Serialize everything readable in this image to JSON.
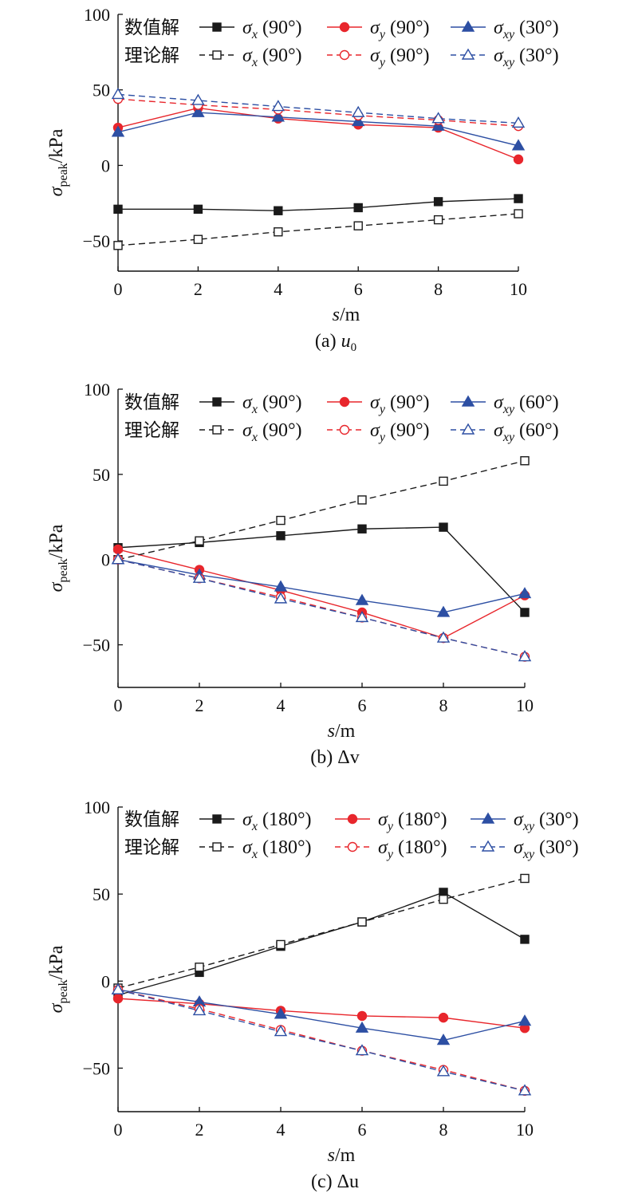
{
  "colors": {
    "black": "#1a1a1a",
    "red": "#e8262c",
    "blue": "#2d4fa3"
  },
  "chart_data": [
    {
      "type": "line",
      "caption_prefix": "(a) ",
      "caption_symbol": "u",
      "caption_sub": "0",
      "xlabel_symbol": "s",
      "xlabel_unit": "/m",
      "ylabel_symbol": "σ",
      "ylabel_sub": "peak",
      "ylabel_unit": "/kPa",
      "xlim": [
        0,
        10
      ],
      "ylim": [
        -70,
        100
      ],
      "x_ticks": [
        0,
        2,
        4,
        6,
        8,
        10
      ],
      "y_ticks": [
        100,
        50,
        0,
        -50
      ],
      "legend_groups": [
        "数值解",
        "理论解"
      ],
      "series": [
        {
          "sym": "σ",
          "sub": "x",
          "angle": "(90°)",
          "color": "black",
          "marker": "square",
          "filled": true,
          "dashed": false,
          "group": 0,
          "x": [
            0,
            2,
            4,
            6,
            8,
            10
          ],
          "values": [
            -29,
            -29,
            -30,
            -28,
            -24,
            -22
          ]
        },
        {
          "sym": "σ",
          "sub": "y",
          "angle": "(90°)",
          "color": "red",
          "marker": "circle",
          "filled": true,
          "dashed": false,
          "group": 0,
          "x": [
            0,
            2,
            4,
            6,
            8,
            10
          ],
          "values": [
            25,
            38,
            31,
            27,
            25,
            4
          ]
        },
        {
          "sym": "σ",
          "sub": "xy",
          "angle": "(30°)",
          "color": "blue",
          "marker": "triangle",
          "filled": true,
          "dashed": false,
          "group": 0,
          "x": [
            0,
            2,
            4,
            6,
            8,
            10
          ],
          "values": [
            22,
            35,
            32,
            29,
            26,
            13
          ]
        },
        {
          "sym": "σ",
          "sub": "x",
          "angle": "(90°)",
          "color": "black",
          "marker": "square",
          "filled": false,
          "dashed": true,
          "group": 1,
          "x": [
            0,
            2,
            4,
            6,
            8,
            10
          ],
          "values": [
            -53,
            -49,
            -44,
            -40,
            -36,
            -32
          ]
        },
        {
          "sym": "σ",
          "sub": "y",
          "angle": "(90°)",
          "color": "red",
          "marker": "circle",
          "filled": false,
          "dashed": true,
          "group": 1,
          "x": [
            0,
            2,
            4,
            6,
            8,
            10
          ],
          "values": [
            44,
            40,
            37,
            33,
            30,
            26
          ]
        },
        {
          "sym": "σ",
          "sub": "xy",
          "angle": "(30°)",
          "color": "blue",
          "marker": "triangle",
          "filled": false,
          "dashed": true,
          "group": 1,
          "x": [
            0,
            2,
            4,
            6,
            8,
            10
          ],
          "values": [
            47,
            43,
            39,
            35,
            31,
            28
          ]
        }
      ]
    },
    {
      "type": "line",
      "caption_prefix": "(b) ",
      "caption_symbol": "Δv",
      "caption_sub": "",
      "xlabel_symbol": "s",
      "xlabel_unit": "/m",
      "ylabel_symbol": "σ",
      "ylabel_sub": "peak",
      "ylabel_unit": "/kPa",
      "xlim": [
        0,
        10
      ],
      "ylim": [
        -75,
        100
      ],
      "x_ticks": [
        0,
        2,
        4,
        6,
        8,
        10
      ],
      "y_ticks": [
        100,
        50,
        0,
        -50
      ],
      "legend_groups": [
        "数值解",
        "理论解"
      ],
      "series": [
        {
          "sym": "σ",
          "sub": "x",
          "angle": "(90°)",
          "color": "black",
          "marker": "square",
          "filled": true,
          "dashed": false,
          "group": 0,
          "x": [
            0,
            2,
            4,
            6,
            8,
            10
          ],
          "values": [
            7,
            10,
            14,
            18,
            19,
            -31
          ]
        },
        {
          "sym": "σ",
          "sub": "y",
          "angle": "(90°)",
          "color": "red",
          "marker": "circle",
          "filled": true,
          "dashed": false,
          "group": 0,
          "x": [
            0,
            2,
            4,
            6,
            8,
            10
          ],
          "values": [
            6,
            -6,
            -18,
            -31,
            -46,
            -21
          ]
        },
        {
          "sym": "σ",
          "sub": "xy",
          "angle": "(60°)",
          "color": "blue",
          "marker": "triangle",
          "filled": true,
          "dashed": false,
          "group": 0,
          "x": [
            0,
            2,
            4,
            6,
            8,
            10
          ],
          "values": [
            0,
            -9,
            -16,
            -24,
            -31,
            -20
          ]
        },
        {
          "sym": "σ",
          "sub": "x",
          "angle": "(90°)",
          "color": "black",
          "marker": "square",
          "filled": false,
          "dashed": true,
          "group": 1,
          "x": [
            0,
            2,
            4,
            6,
            8,
            10
          ],
          "values": [
            0,
            11,
            23,
            35,
            46,
            58
          ]
        },
        {
          "sym": "σ",
          "sub": "y",
          "angle": "(90°)",
          "color": "red",
          "marker": "circle",
          "filled": false,
          "dashed": true,
          "group": 1,
          "x": [
            0,
            2,
            4,
            6,
            8,
            10
          ],
          "values": [
            0,
            -11,
            -22,
            -34,
            -46,
            -57
          ]
        },
        {
          "sym": "σ",
          "sub": "xy",
          "angle": "(60°)",
          "color": "blue",
          "marker": "triangle",
          "filled": false,
          "dashed": true,
          "group": 1,
          "x": [
            0,
            2,
            4,
            6,
            8,
            10
          ],
          "values": [
            0,
            -11,
            -23,
            -34,
            -46,
            -57
          ]
        }
      ]
    },
    {
      "type": "line",
      "caption_prefix": "(c) ",
      "caption_symbol": "Δu",
      "caption_sub": "",
      "xlabel_symbol": "s",
      "xlabel_unit": "/m",
      "ylabel_symbol": "σ",
      "ylabel_sub": "peak",
      "ylabel_unit": "/kPa",
      "xlim": [
        0,
        10
      ],
      "ylim": [
        -75,
        100
      ],
      "x_ticks": [
        0,
        2,
        4,
        6,
        8,
        10
      ],
      "y_ticks": [
        100,
        50,
        0,
        -50
      ],
      "legend_groups": [
        "数值解",
        "理论解"
      ],
      "series": [
        {
          "sym": "σ",
          "sub": "x",
          "angle": "(180°)",
          "color": "black",
          "marker": "square",
          "filled": true,
          "dashed": false,
          "group": 0,
          "x": [
            0,
            2,
            4,
            6,
            8,
            10
          ],
          "values": [
            -8,
            5,
            20,
            34,
            51,
            24
          ]
        },
        {
          "sym": "σ",
          "sub": "y",
          "angle": "(180°)",
          "color": "red",
          "marker": "circle",
          "filled": true,
          "dashed": false,
          "group": 0,
          "x": [
            0,
            2,
            4,
            6,
            8,
            10
          ],
          "values": [
            -10,
            -13,
            -17,
            -20,
            -21,
            -27
          ]
        },
        {
          "sym": "σ",
          "sub": "xy",
          "angle": "(30°)",
          "color": "blue",
          "marker": "triangle",
          "filled": true,
          "dashed": false,
          "group": 0,
          "x": [
            0,
            2,
            4,
            6,
            8,
            10
          ],
          "values": [
            -5,
            -12,
            -19,
            -27,
            -34,
            -23
          ]
        },
        {
          "sym": "σ",
          "sub": "x",
          "angle": "(180°)",
          "color": "black",
          "marker": "square",
          "filled": false,
          "dashed": true,
          "group": 1,
          "x": [
            0,
            2,
            4,
            6,
            8,
            10
          ],
          "values": [
            -4,
            8,
            21,
            34,
            47,
            59
          ]
        },
        {
          "sym": "σ",
          "sub": "y",
          "angle": "(180°)",
          "color": "red",
          "marker": "circle",
          "filled": false,
          "dashed": true,
          "group": 1,
          "x": [
            0,
            2,
            4,
            6,
            8,
            10
          ],
          "values": [
            -5,
            -16,
            -28,
            -40,
            -51,
            -63
          ]
        },
        {
          "sym": "σ",
          "sub": "xy",
          "angle": "(30°)",
          "color": "blue",
          "marker": "triangle",
          "filled": false,
          "dashed": true,
          "group": 1,
          "x": [
            0,
            2,
            4,
            6,
            8,
            10
          ],
          "values": [
            -5,
            -17,
            -29,
            -40,
            -52,
            -63
          ]
        }
      ]
    }
  ]
}
